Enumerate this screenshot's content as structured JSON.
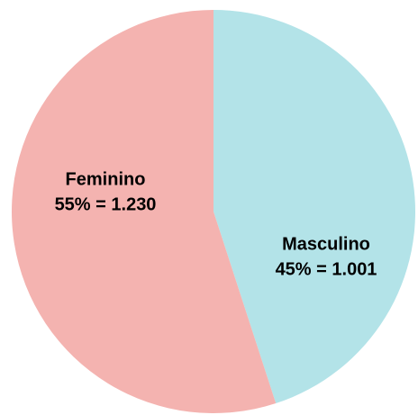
{
  "chart_data": {
    "type": "pie",
    "categories": [
      "Masculino",
      "Feminino"
    ],
    "values": [
      45,
      55
    ],
    "value_labels": [
      "45% = 1.001",
      "55% = 1.230"
    ],
    "colors": [
      "#b3e3e8",
      "#f4b3b0"
    ]
  }
}
